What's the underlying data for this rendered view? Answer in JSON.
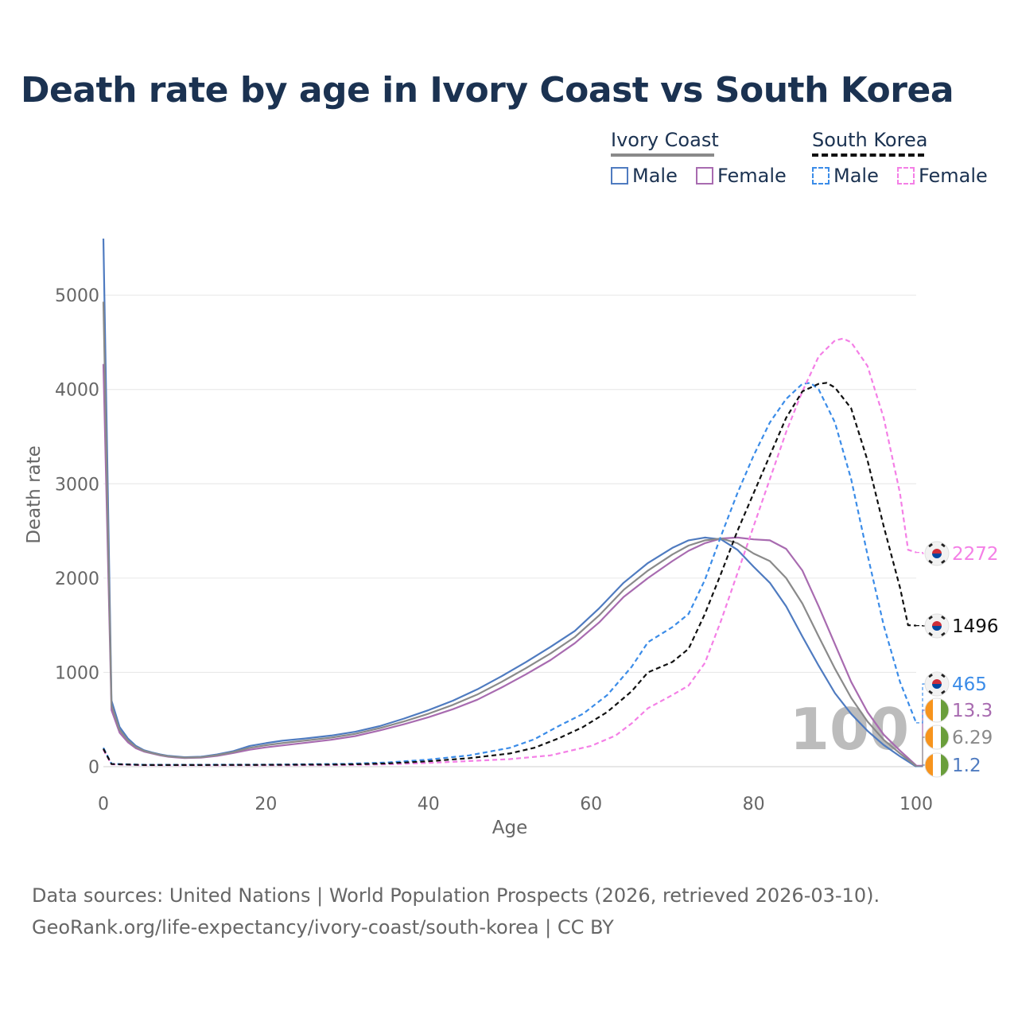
{
  "title": "Death rate by age in Ivory Coast vs South Korea",
  "legend": {
    "group1": {
      "title": "Ivory Coast",
      "male": "Male",
      "female": "Female"
    },
    "group2": {
      "title": "South Korea",
      "male": "Male",
      "female": "Female"
    }
  },
  "colors": {
    "ic_male": "#4f7bc0",
    "ic_female": "#a86bb0",
    "ic_total": "#8a8a8a",
    "sk_male": "#3b8ce8",
    "sk_female": "#f47fe6",
    "sk_total": "#111111",
    "grid": "#e6e6e6",
    "watermark": "#bcbcbc"
  },
  "watermark_age": "100",
  "footer": {
    "line1": "Data sources: United Nations | World Population Prospects (2026, retrieved 2026-03-10).",
    "line2": "GeoRank.org/life-expectancy/ivory-coast/south-korea | CC BY"
  },
  "chart_data": {
    "type": "line",
    "xlabel": "Age",
    "ylabel": "Death rate",
    "xlim": [
      0,
      100
    ],
    "ylim": [
      0,
      5600
    ],
    "xticks": [
      0,
      20,
      40,
      60,
      80,
      100
    ],
    "yticks": [
      0,
      1000,
      2000,
      3000,
      4000,
      5000
    ],
    "grid": true,
    "series": [
      {
        "name": "Ivory Coast Male",
        "color_key": "ic_male",
        "dashed": false,
        "points": [
          [
            0,
            5600
          ],
          [
            1,
            700
          ],
          [
            2,
            420
          ],
          [
            3,
            300
          ],
          [
            4,
            220
          ],
          [
            5,
            175
          ],
          [
            6,
            150
          ],
          [
            7,
            130
          ],
          [
            8,
            115
          ],
          [
            9,
            108
          ],
          [
            10,
            100
          ],
          [
            12,
            105
          ],
          [
            14,
            130
          ],
          [
            16,
            165
          ],
          [
            18,
            220
          ],
          [
            20,
            250
          ],
          [
            22,
            275
          ],
          [
            25,
            300
          ],
          [
            28,
            330
          ],
          [
            31,
            370
          ],
          [
            34,
            430
          ],
          [
            37,
            510
          ],
          [
            40,
            600
          ],
          [
            43,
            700
          ],
          [
            46,
            820
          ],
          [
            49,
            960
          ],
          [
            52,
            1110
          ],
          [
            55,
            1270
          ],
          [
            58,
            1440
          ],
          [
            61,
            1680
          ],
          [
            64,
            1950
          ],
          [
            67,
            2160
          ],
          [
            70,
            2320
          ],
          [
            72,
            2400
          ],
          [
            74,
            2430
          ],
          [
            76,
            2410
          ],
          [
            78,
            2300
          ],
          [
            80,
            2120
          ],
          [
            82,
            1950
          ],
          [
            84,
            1700
          ],
          [
            86,
            1380
          ],
          [
            88,
            1070
          ],
          [
            90,
            780
          ],
          [
            92,
            560
          ],
          [
            94,
            380
          ],
          [
            96,
            230
          ],
          [
            98,
            110
          ],
          [
            100,
            1.2
          ]
        ],
        "end_label": "1.2"
      },
      {
        "name": "Ivory Coast Female",
        "color_key": "ic_female",
        "dashed": false,
        "points": [
          [
            0,
            4270
          ],
          [
            1,
            600
          ],
          [
            2,
            360
          ],
          [
            3,
            260
          ],
          [
            4,
            195
          ],
          [
            5,
            160
          ],
          [
            6,
            140
          ],
          [
            7,
            120
          ],
          [
            8,
            105
          ],
          [
            9,
            98
          ],
          [
            10,
            92
          ],
          [
            12,
            95
          ],
          [
            14,
            115
          ],
          [
            16,
            145
          ],
          [
            18,
            180
          ],
          [
            20,
            205
          ],
          [
            22,
            225
          ],
          [
            25,
            255
          ],
          [
            28,
            285
          ],
          [
            31,
            325
          ],
          [
            34,
            385
          ],
          [
            37,
            450
          ],
          [
            40,
            525
          ],
          [
            43,
            610
          ],
          [
            46,
            710
          ],
          [
            49,
            840
          ],
          [
            52,
            980
          ],
          [
            55,
            1130
          ],
          [
            58,
            1310
          ],
          [
            61,
            1530
          ],
          [
            64,
            1800
          ],
          [
            67,
            2000
          ],
          [
            70,
            2180
          ],
          [
            72,
            2290
          ],
          [
            74,
            2370
          ],
          [
            76,
            2420
          ],
          [
            78,
            2430
          ],
          [
            80,
            2410
          ],
          [
            82,
            2400
          ],
          [
            84,
            2310
          ],
          [
            86,
            2080
          ],
          [
            88,
            1700
          ],
          [
            90,
            1300
          ],
          [
            92,
            900
          ],
          [
            94,
            580
          ],
          [
            96,
            340
          ],
          [
            98,
            170
          ],
          [
            100,
            13.3
          ]
        ],
        "end_label": "13.3"
      },
      {
        "name": "Ivory Coast Total",
        "color_key": "ic_total",
        "dashed": false,
        "points": [
          [
            0,
            4930
          ],
          [
            1,
            650
          ],
          [
            2,
            390
          ],
          [
            3,
            280
          ],
          [
            4,
            208
          ],
          [
            5,
            168
          ],
          [
            6,
            145
          ],
          [
            7,
            125
          ],
          [
            8,
            110
          ],
          [
            9,
            103
          ],
          [
            10,
            96
          ],
          [
            12,
            100
          ],
          [
            14,
            122
          ],
          [
            16,
            155
          ],
          [
            18,
            200
          ],
          [
            20,
            228
          ],
          [
            22,
            250
          ],
          [
            25,
            278
          ],
          [
            28,
            308
          ],
          [
            31,
            348
          ],
          [
            34,
            408
          ],
          [
            37,
            480
          ],
          [
            40,
            562
          ],
          [
            43,
            655
          ],
          [
            46,
            765
          ],
          [
            49,
            900
          ],
          [
            52,
            1045
          ],
          [
            55,
            1200
          ],
          [
            58,
            1375
          ],
          [
            61,
            1605
          ],
          [
            64,
            1875
          ],
          [
            67,
            2080
          ],
          [
            70,
            2250
          ],
          [
            72,
            2345
          ],
          [
            74,
            2400
          ],
          [
            76,
            2420
          ],
          [
            78,
            2370
          ],
          [
            80,
            2260
          ],
          [
            82,
            2180
          ],
          [
            84,
            2000
          ],
          [
            86,
            1730
          ],
          [
            88,
            1380
          ],
          [
            90,
            1040
          ],
          [
            92,
            730
          ],
          [
            94,
            480
          ],
          [
            96,
            285
          ],
          [
            98,
            140
          ],
          [
            100,
            6.29
          ]
        ],
        "end_label": "6.29"
      },
      {
        "name": "South Korea Male",
        "color_key": "sk_male",
        "dashed": true,
        "points": [
          [
            0,
            200
          ],
          [
            1,
            30
          ],
          [
            5,
            20
          ],
          [
            10,
            20
          ],
          [
            20,
            22
          ],
          [
            30,
            30
          ],
          [
            35,
            45
          ],
          [
            40,
            75
          ],
          [
            45,
            120
          ],
          [
            50,
            200
          ],
          [
            53,
            290
          ],
          [
            56,
            430
          ],
          [
            59,
            560
          ],
          [
            62,
            760
          ],
          [
            65,
            1060
          ],
          [
            67,
            1320
          ],
          [
            70,
            1480
          ],
          [
            72,
            1620
          ],
          [
            74,
            1980
          ],
          [
            76,
            2450
          ],
          [
            78,
            2900
          ],
          [
            80,
            3300
          ],
          [
            82,
            3650
          ],
          [
            84,
            3900
          ],
          [
            86,
            4060
          ],
          [
            87,
            4070
          ],
          [
            88,
            4000
          ],
          [
            90,
            3650
          ],
          [
            92,
            3050
          ],
          [
            94,
            2250
          ],
          [
            96,
            1500
          ],
          [
            98,
            900
          ],
          [
            100,
            465
          ]
        ],
        "end_label": "465"
      },
      {
        "name": "South Korea Female",
        "color_key": "sk_female",
        "dashed": true,
        "points": [
          [
            0,
            180
          ],
          [
            1,
            25
          ],
          [
            5,
            15
          ],
          [
            10,
            15
          ],
          [
            20,
            15
          ],
          [
            30,
            18
          ],
          [
            35,
            25
          ],
          [
            40,
            40
          ],
          [
            45,
            60
          ],
          [
            50,
            80
          ],
          [
            55,
            120
          ],
          [
            60,
            220
          ],
          [
            63,
            330
          ],
          [
            65,
            460
          ],
          [
            67,
            620
          ],
          [
            70,
            760
          ],
          [
            72,
            860
          ],
          [
            74,
            1100
          ],
          [
            76,
            1550
          ],
          [
            78,
            2050
          ],
          [
            80,
            2550
          ],
          [
            82,
            3050
          ],
          [
            84,
            3550
          ],
          [
            86,
            3980
          ],
          [
            88,
            4350
          ],
          [
            90,
            4520
          ],
          [
            91,
            4540
          ],
          [
            92,
            4500
          ],
          [
            94,
            4250
          ],
          [
            96,
            3700
          ],
          [
            98,
            2900
          ],
          [
            99,
            2300
          ],
          [
            100,
            2272
          ]
        ],
        "end_label": "2272"
      },
      {
        "name": "South Korea Total",
        "color_key": "sk_total",
        "dashed": true,
        "points": [
          [
            0,
            190
          ],
          [
            1,
            28
          ],
          [
            5,
            18
          ],
          [
            10,
            18
          ],
          [
            20,
            19
          ],
          [
            30,
            24
          ],
          [
            35,
            35
          ],
          [
            40,
            57
          ],
          [
            45,
            90
          ],
          [
            50,
            140
          ],
          [
            53,
            200
          ],
          [
            56,
            300
          ],
          [
            59,
            420
          ],
          [
            62,
            580
          ],
          [
            65,
            800
          ],
          [
            67,
            1000
          ],
          [
            70,
            1110
          ],
          [
            72,
            1250
          ],
          [
            74,
            1620
          ],
          [
            76,
            2050
          ],
          [
            78,
            2500
          ],
          [
            80,
            2900
          ],
          [
            82,
            3300
          ],
          [
            84,
            3700
          ],
          [
            86,
            3980
          ],
          [
            88,
            4060
          ],
          [
            89,
            4070
          ],
          [
            90,
            4020
          ],
          [
            92,
            3800
          ],
          [
            94,
            3250
          ],
          [
            96,
            2550
          ],
          [
            98,
            1900
          ],
          [
            99,
            1500
          ],
          [
            100,
            1496
          ]
        ],
        "end_label": "1496"
      }
    ]
  }
}
